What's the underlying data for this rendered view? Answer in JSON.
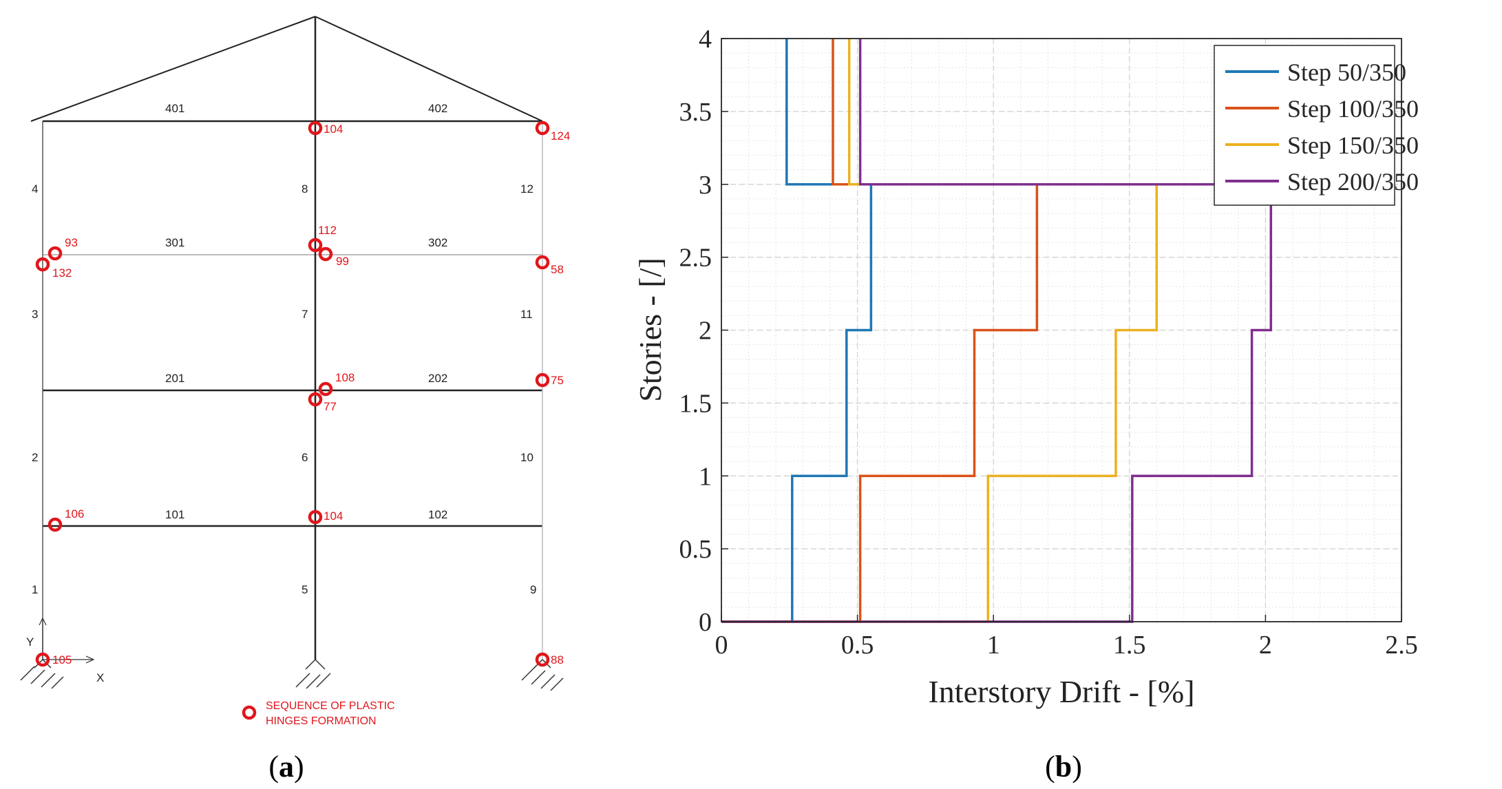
{
  "panel_a": {
    "label_open": "(",
    "label_letter": "a",
    "label_close": ")",
    "axis_x": "X",
    "axis_y": "Y",
    "members": [
      {
        "id": "member-401",
        "text": "401"
      },
      {
        "id": "member-402",
        "text": "402"
      },
      {
        "id": "member-301",
        "text": "301"
      },
      {
        "id": "member-302",
        "text": "302"
      },
      {
        "id": "member-201",
        "text": "201"
      },
      {
        "id": "member-202",
        "text": "202"
      },
      {
        "id": "member-101",
        "text": "101"
      },
      {
        "id": "member-102",
        "text": "102"
      },
      {
        "id": "member-1",
        "text": "1"
      },
      {
        "id": "member-2",
        "text": "2"
      },
      {
        "id": "member-3",
        "text": "3"
      },
      {
        "id": "member-4",
        "text": "4"
      },
      {
        "id": "member-5",
        "text": "5"
      },
      {
        "id": "member-6",
        "text": "6"
      },
      {
        "id": "member-7",
        "text": "7"
      },
      {
        "id": "member-8",
        "text": "8"
      },
      {
        "id": "member-9",
        "text": "9"
      },
      {
        "id": "member-10",
        "text": "10"
      },
      {
        "id": "member-11",
        "text": "11"
      },
      {
        "id": "member-12",
        "text": "12"
      }
    ],
    "hinges": [
      {
        "id": "h-top-mid",
        "step": "104"
      },
      {
        "id": "h-top-right",
        "step": "124"
      },
      {
        "id": "h-3-left-a",
        "step": "93"
      },
      {
        "id": "h-3-left-b",
        "step": "132"
      },
      {
        "id": "h-3-mid-a",
        "step": "112"
      },
      {
        "id": "h-3-mid-b",
        "step": "99"
      },
      {
        "id": "h-3-right",
        "step": "58"
      },
      {
        "id": "h-2-mid-a",
        "step": "108"
      },
      {
        "id": "h-2-mid-b",
        "step": "77"
      },
      {
        "id": "h-2-right",
        "step": "75"
      },
      {
        "id": "h-1-left",
        "step": "106"
      },
      {
        "id": "h-1-mid",
        "step": "104"
      },
      {
        "id": "h-base-left",
        "step": "105"
      },
      {
        "id": "h-base-right",
        "step": "88"
      }
    ],
    "legend_line1": "SEQUENCE OF PLASTIC",
    "legend_line2": "HINGES FORMATION",
    "hinge_color": "#e0161b"
  },
  "panel_b": {
    "label_open": "(",
    "label_letter": "b",
    "label_close": ")"
  },
  "chart_data": {
    "type": "line",
    "title": "",
    "xlabel": "Interstory Drift - [%]",
    "ylabel": "Stories - [/]",
    "xlim": [
      0,
      2.5
    ],
    "ylim": [
      0,
      4
    ],
    "xticks": [
      "0",
      "0.5",
      "1",
      "1.5",
      "2",
      "2.5"
    ],
    "yticks": [
      "0",
      "0.5",
      "1",
      "1.5",
      "2",
      "2.5",
      "3",
      "3.5",
      "4"
    ],
    "grid": true,
    "legend_position": "top-right",
    "series": [
      {
        "name": "Step 50/350",
        "color": "#1f77b4",
        "points": [
          [
            0,
            0
          ],
          [
            0.26,
            0
          ],
          [
            0.26,
            1
          ],
          [
            0.46,
            1
          ],
          [
            0.46,
            2
          ],
          [
            0.55,
            2
          ],
          [
            0.55,
            3
          ],
          [
            0.24,
            3
          ],
          [
            0.24,
            4
          ]
        ]
      },
      {
        "name": "Step 100/350",
        "color": "#d95319",
        "points": [
          [
            0,
            0
          ],
          [
            0.51,
            0
          ],
          [
            0.51,
            1
          ],
          [
            0.93,
            1
          ],
          [
            0.93,
            2
          ],
          [
            1.16,
            2
          ],
          [
            1.16,
            3
          ],
          [
            0.41,
            3
          ],
          [
            0.41,
            4
          ]
        ]
      },
      {
        "name": "Step 150/350",
        "color": "#edb120",
        "points": [
          [
            0,
            0
          ],
          [
            0.98,
            0
          ],
          [
            0.98,
            1
          ],
          [
            1.45,
            1
          ],
          [
            1.45,
            2
          ],
          [
            1.6,
            2
          ],
          [
            1.6,
            3
          ],
          [
            0.47,
            3
          ],
          [
            0.47,
            4
          ]
        ]
      },
      {
        "name": "Step 200/350",
        "color": "#7e2f8e",
        "points": [
          [
            0,
            0
          ],
          [
            1.51,
            0
          ],
          [
            1.51,
            1
          ],
          [
            1.95,
            1
          ],
          [
            1.95,
            2
          ],
          [
            2.02,
            2
          ],
          [
            2.02,
            3
          ],
          [
            0.51,
            3
          ],
          [
            0.51,
            4
          ]
        ]
      }
    ]
  }
}
